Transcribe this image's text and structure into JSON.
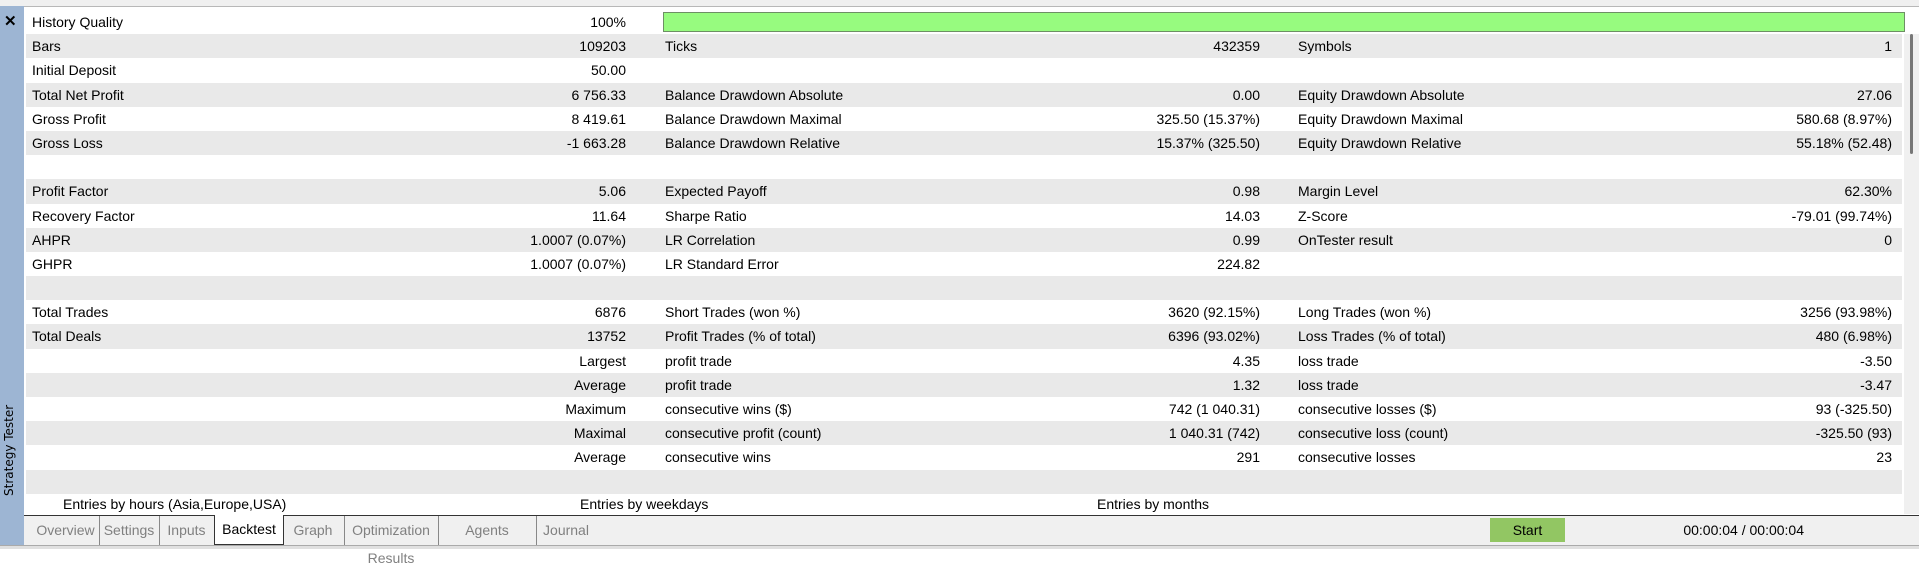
{
  "sidebar": {
    "title": "Strategy Tester",
    "close_icon": "close-icon"
  },
  "history_quality": {
    "label": "History Quality",
    "value": "100%",
    "fill_percent": 100,
    "bar_color": "#97fb7f"
  },
  "rows": [
    {
      "c1": [
        "Bars",
        "109203"
      ],
      "c2": [
        "Ticks",
        "432359"
      ],
      "c3": [
        "Symbols",
        "1"
      ]
    },
    {
      "c1": [
        "Initial Deposit",
        "50.00"
      ],
      "c2": [
        "",
        ""
      ],
      "c3": [
        "",
        ""
      ]
    },
    {
      "c1": [
        "Total Net Profit",
        "6 756.33"
      ],
      "c2": [
        "Balance Drawdown Absolute",
        "0.00"
      ],
      "c3": [
        "Equity Drawdown Absolute",
        "27.06"
      ]
    },
    {
      "c1": [
        "Gross Profit",
        "8 419.61"
      ],
      "c2": [
        "Balance Drawdown Maximal",
        "325.50 (15.37%)"
      ],
      "c3": [
        "Equity Drawdown Maximal",
        "580.68 (8.97%)"
      ]
    },
    {
      "c1": [
        "Gross Loss",
        "-1 663.28"
      ],
      "c2": [
        "Balance Drawdown Relative",
        "15.37% (325.50)"
      ],
      "c3": [
        "Equity Drawdown Relative",
        "55.18% (52.48)"
      ]
    },
    {
      "c1": [
        "",
        ""
      ],
      "c2": [
        "",
        ""
      ],
      "c3": [
        "",
        ""
      ]
    },
    {
      "c1": [
        "Profit Factor",
        "5.06"
      ],
      "c2": [
        "Expected Payoff",
        "0.98"
      ],
      "c3": [
        "Margin Level",
        "62.30%"
      ]
    },
    {
      "c1": [
        "Recovery Factor",
        "11.64"
      ],
      "c2": [
        "Sharpe Ratio",
        "14.03"
      ],
      "c3": [
        "Z-Score",
        "-79.01 (99.74%)"
      ]
    },
    {
      "c1": [
        "AHPR",
        "1.0007 (0.07%)"
      ],
      "c2": [
        "LR Correlation",
        "0.99"
      ],
      "c3": [
        "OnTester result",
        "0"
      ]
    },
    {
      "c1": [
        "GHPR",
        "1.0007 (0.07%)"
      ],
      "c2": [
        "LR Standard Error",
        "224.82"
      ],
      "c3": [
        "",
        ""
      ]
    },
    {
      "c1": [
        "",
        ""
      ],
      "c2": [
        "",
        ""
      ],
      "c3": [
        "",
        ""
      ]
    },
    {
      "c1": [
        "Total Trades",
        "6876"
      ],
      "c2": [
        "Short Trades (won %)",
        "3620 (92.15%)"
      ],
      "c3": [
        "Long Trades (won %)",
        "3256 (93.98%)"
      ]
    },
    {
      "c1": [
        "Total Deals",
        "13752"
      ],
      "c2": [
        "Profit Trades (% of total)",
        "6396 (93.02%)"
      ],
      "c3": [
        "Loss Trades (% of total)",
        "480 (6.98%)"
      ]
    },
    {
      "c1": [
        "",
        "Largest"
      ],
      "c2": [
        "profit trade",
        "4.35"
      ],
      "c3": [
        "loss trade",
        "-3.50"
      ]
    },
    {
      "c1": [
        "",
        "Average"
      ],
      "c2": [
        "profit trade",
        "1.32"
      ],
      "c3": [
        "loss trade",
        "-3.47"
      ]
    },
    {
      "c1": [
        "",
        "Maximum"
      ],
      "c2": [
        "consecutive wins ($)",
        "742 (1 040.31)"
      ],
      "c3": [
        "consecutive losses ($)",
        "93 (-325.50)"
      ]
    },
    {
      "c1": [
        "",
        "Maximal"
      ],
      "c2": [
        "consecutive profit (count)",
        "1 040.31 (742)"
      ],
      "c3": [
        "consecutive loss (count)",
        "-325.50 (93)"
      ]
    },
    {
      "c1": [
        "",
        "Average"
      ],
      "c2": [
        "consecutive wins",
        "291"
      ],
      "c3": [
        "consecutive losses",
        "23"
      ]
    },
    {
      "c1": [
        "",
        ""
      ],
      "c2": [
        "",
        ""
      ],
      "c3": [
        "",
        ""
      ]
    }
  ],
  "chart_headings": [
    "Entries by hours (Asia,Europe,USA)",
    "Entries by weekdays",
    "Entries by months"
  ],
  "tabs": [
    {
      "label": "Overview"
    },
    {
      "label": "Settings"
    },
    {
      "label": "Inputs"
    },
    {
      "label": "Backtest",
      "active": true
    },
    {
      "label": "Graph"
    },
    {
      "label": "Optimization Results"
    },
    {
      "label": "Agents"
    },
    {
      "label": "Journal"
    }
  ],
  "status": {
    "timer": "00:00:04 / 00:00:04",
    "start_label": "Start",
    "start_color": "#92c663"
  }
}
